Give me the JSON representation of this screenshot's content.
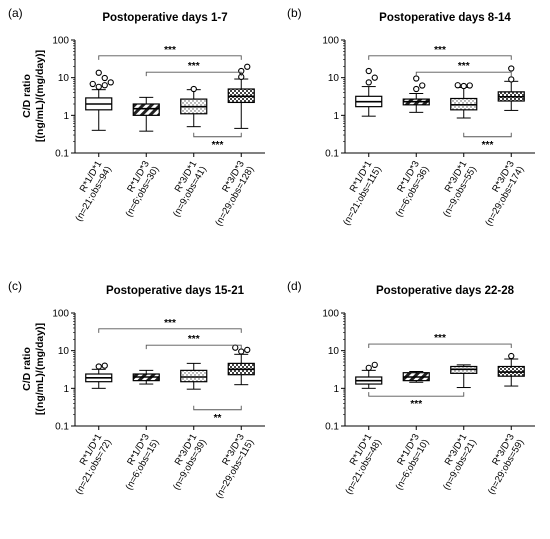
{
  "chart_data": [
    {
      "type": "boxplot",
      "panel": "(a)",
      "title": "Postoperative days 1-7",
      "ylabel": [
        "C/D ratio",
        "[(ng/mL)/(mg/day)]"
      ],
      "yscale": "log",
      "ylim": [
        0.1,
        100
      ],
      "yticks": [
        "0.1",
        "1",
        "10",
        "100"
      ],
      "categories": [
        {
          "group": "R*1/D*1",
          "n": "(n=21;obs=94)"
        },
        {
          "group": "R*1/D*3",
          "n": "(n=6;obs=30)"
        },
        {
          "group": "R*3/D*1",
          "n": "(n=9;obs=41)"
        },
        {
          "group": "R*3/D*3",
          "n": "(n=29;obs=128)"
        }
      ],
      "boxes": [
        {
          "fill": "plain",
          "whisker_low": 0.4,
          "q1": 1.4,
          "median": 2.0,
          "q3": 2.9,
          "whisker_high": 4.8,
          "outliers": [
            5.7,
            6.3,
            6.8,
            7.5,
            9.8,
            13.5
          ]
        },
        {
          "fill": "diag",
          "whisker_low": 0.38,
          "q1": 1.0,
          "median": 1.5,
          "q3": 2.0,
          "whisker_high": 3.0,
          "outliers": []
        },
        {
          "fill": "dots",
          "whisker_low": 0.5,
          "q1": 1.1,
          "median": 1.7,
          "q3": 2.7,
          "whisker_high": 4.8,
          "outliers": [
            5.0
          ]
        },
        {
          "fill": "check",
          "whisker_low": 0.45,
          "q1": 2.2,
          "median": 3.2,
          "q3": 5.0,
          "whisker_high": 9.2,
          "outliers": [
            10.5,
            15.0,
            19.5
          ]
        }
      ],
      "brackets": [
        {
          "from": 0,
          "to": 3,
          "y": 38,
          "pos": "above",
          "label": "***"
        },
        {
          "from": 1,
          "to": 3,
          "y": 14,
          "pos": "above",
          "label": "***"
        },
        {
          "from": 2,
          "to": 3,
          "y": 0.27,
          "pos": "below",
          "label": "***"
        }
      ]
    },
    {
      "type": "boxplot",
      "panel": "(b)",
      "title": "Postoperative days 8-14",
      "ylabel": [],
      "yscale": "log",
      "ylim": [
        0.1,
        100
      ],
      "yticks": [
        "0.1",
        "1",
        "10",
        "100"
      ],
      "categories": [
        {
          "group": "R*1/D*1",
          "n": "(n=21;obs=115)"
        },
        {
          "group": "R*1/D*3",
          "n": "(n=6;obs=36)"
        },
        {
          "group": "R*3/D*1",
          "n": "(n=9;obs=55)"
        },
        {
          "group": "R*3/D*3",
          "n": "(n=29;obs=174)"
        }
      ],
      "boxes": [
        {
          "fill": "plain",
          "whisker_low": 0.95,
          "q1": 1.7,
          "median": 2.3,
          "q3": 3.2,
          "whisker_high": 5.8,
          "outliers": [
            7.5,
            10.0,
            15.0
          ]
        },
        {
          "fill": "diag",
          "whisker_low": 1.2,
          "q1": 1.9,
          "median": 2.3,
          "q3": 2.7,
          "whisker_high": 3.8,
          "outliers": [
            5.0,
            6.2,
            9.5
          ]
        },
        {
          "fill": "dots",
          "whisker_low": 0.85,
          "q1": 1.4,
          "median": 1.9,
          "q3": 2.8,
          "whisker_high": 5.5,
          "outliers": [
            6.0,
            6.2,
            6.3
          ]
        },
        {
          "fill": "check",
          "whisker_low": 1.35,
          "q1": 2.4,
          "median": 3.1,
          "q3": 4.2,
          "whisker_high": 8.0,
          "outliers": [
            9.0,
            17.5
          ]
        }
      ],
      "brackets": [
        {
          "from": 0,
          "to": 3,
          "y": 38,
          "pos": "above",
          "label": "***"
        },
        {
          "from": 1,
          "to": 3,
          "y": 14,
          "pos": "above",
          "label": "***"
        },
        {
          "from": 2,
          "to": 3,
          "y": 0.27,
          "pos": "below",
          "label": "***"
        }
      ]
    },
    {
      "type": "boxplot",
      "panel": "(c)",
      "title": "Postoperative days 15-21",
      "ylabel": [
        "C/D ratio",
        "[(ng/mL)/(mg/day)]"
      ],
      "yscale": "log",
      "ylim": [
        0.1,
        100
      ],
      "yticks": [
        "0.1",
        "1",
        "10",
        "100"
      ],
      "categories": [
        {
          "group": "R*1/D*1",
          "n": "(n=21;obs=72)"
        },
        {
          "group": "R*1/D*3",
          "n": "(n=6;obs=15)"
        },
        {
          "group": "R*3/D*1",
          "n": "(n=9;obs=39)"
        },
        {
          "group": "R*3/D*3",
          "n": "(n=29;obs=115)"
        }
      ],
      "boxes": [
        {
          "fill": "plain",
          "whisker_low": 1.0,
          "q1": 1.5,
          "median": 1.9,
          "q3": 2.4,
          "whisker_high": 3.2,
          "outliers": [
            3.8,
            4.0
          ]
        },
        {
          "fill": "diag",
          "whisker_low": 1.3,
          "q1": 1.6,
          "median": 2.0,
          "q3": 2.4,
          "whisker_high": 3.0,
          "outliers": []
        },
        {
          "fill": "dots",
          "whisker_low": 0.95,
          "q1": 1.5,
          "median": 2.0,
          "q3": 3.0,
          "whisker_high": 4.6,
          "outliers": []
        },
        {
          "fill": "check",
          "whisker_low": 1.25,
          "q1": 2.3,
          "median": 3.2,
          "q3": 4.6,
          "whisker_high": 8.0,
          "outliers": [
            9.5,
            10.5,
            12.0
          ]
        }
      ],
      "brackets": [
        {
          "from": 0,
          "to": 3,
          "y": 38,
          "pos": "above",
          "label": "***"
        },
        {
          "from": 1,
          "to": 3,
          "y": 14,
          "pos": "above",
          "label": "***"
        },
        {
          "from": 2,
          "to": 3,
          "y": 0.27,
          "pos": "below",
          "label": "**"
        }
      ]
    },
    {
      "type": "boxplot",
      "panel": "(d)",
      "title": "Postoperative days 22-28",
      "ylabel": [],
      "yscale": "log",
      "ylim": [
        0.1,
        100
      ],
      "yticks": [
        "0.1",
        "1",
        "10",
        "100"
      ],
      "categories": [
        {
          "group": "R*1/D*1",
          "n": "(n=21;obs=48)"
        },
        {
          "group": "R*1/D*3",
          "n": "(n=6;obs=10)"
        },
        {
          "group": "R*3/D*1",
          "n": "(n=9;obs=21)"
        },
        {
          "group": "R*3/D*3",
          "n": "(n=29;obs=59)"
        }
      ],
      "boxes": [
        {
          "fill": "plain",
          "whisker_low": 1.0,
          "q1": 1.3,
          "median": 1.6,
          "q3": 2.0,
          "whisker_high": 3.0,
          "outliers": [
            3.5,
            4.2
          ]
        },
        {
          "fill": "diag",
          "whisker_low": 1.45,
          "q1": 1.6,
          "median": 2.0,
          "q3": 2.6,
          "whisker_high": 2.8,
          "outliers": []
        },
        {
          "fill": "dots",
          "whisker_low": 1.05,
          "q1": 2.5,
          "median": 3.2,
          "q3": 3.8,
          "whisker_high": 4.2,
          "outliers": []
        },
        {
          "fill": "check",
          "whisker_low": 1.15,
          "q1": 2.1,
          "median": 2.7,
          "q3": 3.8,
          "whisker_high": 6.0,
          "outliers": [
            7.2
          ]
        }
      ],
      "brackets": [
        {
          "from": 0,
          "to": 3,
          "y": 15,
          "pos": "above",
          "label": "***"
        },
        {
          "from": 0,
          "to": 2,
          "y": 0.62,
          "pos": "below",
          "label": "***"
        }
      ]
    }
  ]
}
